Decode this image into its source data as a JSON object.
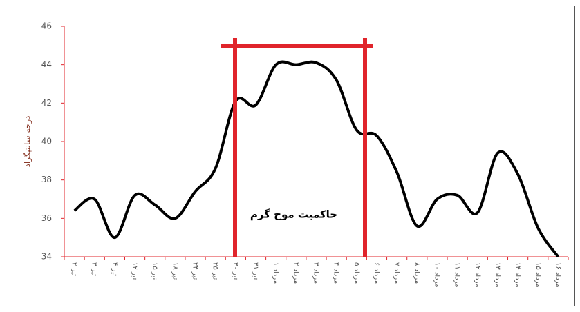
{
  "chart_data": {
    "type": "line",
    "y_label": "درجه سانتیگراد",
    "annotation": "حاکمیت موج گرم",
    "categories": [
      "۲ تیر",
      "۳ تیر",
      "۴ تیر",
      "۱۲ تیر",
      "۱۵ تیر",
      "۱۸ تیر",
      "۲۴ تیر",
      "۲۵ تیر",
      "۳۰ تیر",
      "۳۱ تیر",
      "۱ مرداد",
      "۲ مرداد",
      "۳ مرداد",
      "۴ مرداد",
      "۵ مرداد",
      "۶ مرداد",
      "۷ مرداد",
      "۸ مرداد",
      "۱۰ مرداد",
      "۱۱ مرداد",
      "۱۲ مرداد",
      "۱۳ مرداد",
      "۱۴ مرداد",
      "۱۵ مرداد",
      "۱۶ مرداد"
    ],
    "values": [
      36.4,
      37.0,
      35.0,
      37.2,
      36.7,
      36.0,
      37.4,
      38.6,
      42.1,
      41.9,
      44.0,
      44.0,
      44.1,
      43.2,
      40.6,
      40.3,
      38.4,
      35.6,
      37.0,
      37.2,
      36.3,
      39.4,
      38.3,
      35.5,
      34.0
    ],
    "color": "#000000",
    "axis_color": "#e0242b",
    "ylim": [
      34,
      46
    ],
    "yticks": [
      34,
      36,
      38,
      40,
      42,
      44,
      46
    ]
  }
}
